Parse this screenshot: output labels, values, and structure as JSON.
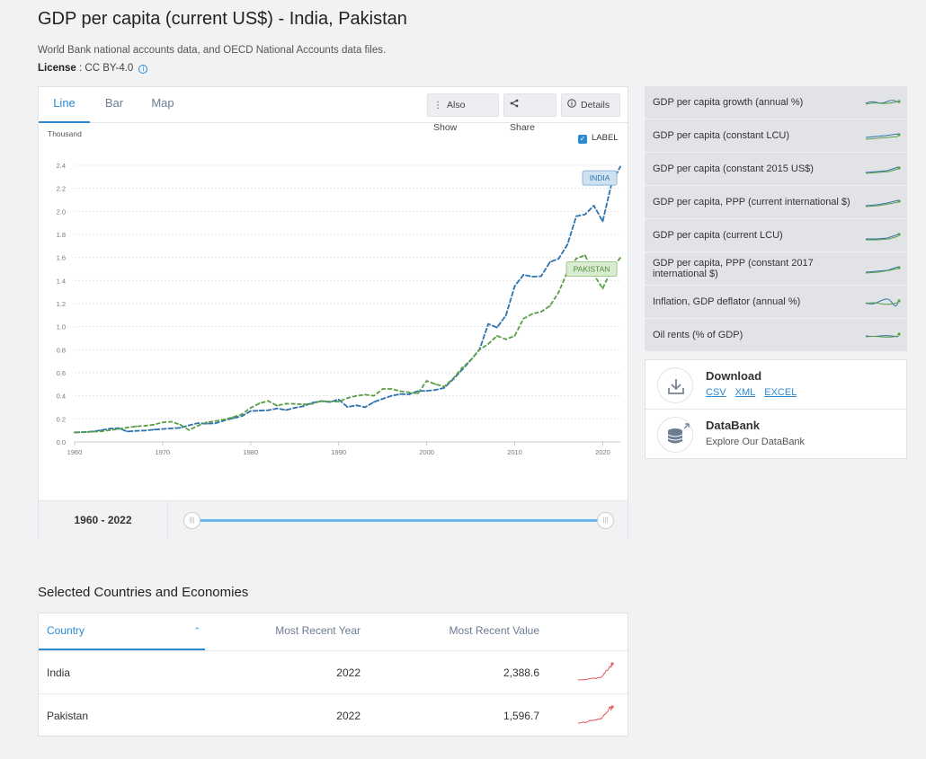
{
  "page": {
    "title": "GDP per capita (current US$) - India, Pakistan",
    "source": "World Bank national accounts data, and OECD National Accounts data files.",
    "license_label": "License",
    "license_value": " : CC BY-4.0"
  },
  "tabs": [
    {
      "label": "Line",
      "active": true
    },
    {
      "label": "Bar",
      "active": false
    },
    {
      "label": "Map",
      "active": false
    }
  ],
  "toolbar": {
    "also_show": "Also Show",
    "share": "Share",
    "details": "Details"
  },
  "label_toggle": {
    "label": "LABEL",
    "checked": true
  },
  "chart_data": {
    "type": "line",
    "ylabel": "Thousand",
    "xlim": [
      1960,
      2022
    ],
    "ylim": [
      0,
      2.4
    ],
    "y_ticks": [
      "0.0",
      "0.2",
      "0.4",
      "0.6",
      "0.8",
      "1.0",
      "1.2",
      "1.4",
      "1.6",
      "1.8",
      "2.0",
      "2.2",
      "2.4"
    ],
    "x_ticks": [
      "1960",
      "1970",
      "1980",
      "1990",
      "2000",
      "2010",
      "2020"
    ],
    "grid": true,
    "series": [
      {
        "name": "INDIA",
        "color": "#2e73ad",
        "x": [
          1960,
          1961,
          1962,
          1963,
          1964,
          1965,
          1966,
          1967,
          1968,
          1969,
          1970,
          1971,
          1972,
          1973,
          1974,
          1975,
          1976,
          1977,
          1978,
          1979,
          1980,
          1981,
          1982,
          1983,
          1984,
          1985,
          1986,
          1987,
          1988,
          1989,
          1990,
          1991,
          1992,
          1993,
          1994,
          1995,
          1996,
          1997,
          1998,
          1999,
          2000,
          2001,
          2002,
          2003,
          2004,
          2005,
          2006,
          2007,
          2008,
          2009,
          2010,
          2011,
          2012,
          2013,
          2014,
          2015,
          2016,
          2017,
          2018,
          2019,
          2020,
          2021,
          2022
        ],
        "values": [
          0.083,
          0.086,
          0.09,
          0.101,
          0.115,
          0.119,
          0.09,
          0.096,
          0.099,
          0.107,
          0.112,
          0.118,
          0.122,
          0.144,
          0.163,
          0.158,
          0.161,
          0.186,
          0.206,
          0.224,
          0.267,
          0.271,
          0.274,
          0.291,
          0.277,
          0.296,
          0.31,
          0.34,
          0.354,
          0.346,
          0.368,
          0.303,
          0.317,
          0.301,
          0.346,
          0.374,
          0.4,
          0.415,
          0.413,
          0.441,
          0.443,
          0.451,
          0.47,
          0.543,
          0.624,
          0.71,
          0.802,
          1.023,
          0.993,
          1.097,
          1.351,
          1.45,
          1.434,
          1.438,
          1.56,
          1.59,
          1.714,
          1.958,
          1.974,
          2.05,
          1.913,
          2.239,
          2.389
        ]
      },
      {
        "name": "PAKISTAN",
        "color": "#5a9e45",
        "x": [
          1960,
          1961,
          1962,
          1963,
          1964,
          1965,
          1966,
          1967,
          1968,
          1969,
          1970,
          1971,
          1972,
          1973,
          1974,
          1975,
          1976,
          1977,
          1978,
          1979,
          1980,
          1981,
          1982,
          1983,
          1984,
          1985,
          1986,
          1987,
          1988,
          1989,
          1990,
          1991,
          1992,
          1993,
          1994,
          1995,
          1996,
          1997,
          1998,
          1999,
          2000,
          2001,
          2002,
          2003,
          2004,
          2005,
          2006,
          2007,
          2008,
          2009,
          2010,
          2011,
          2012,
          2013,
          2014,
          2015,
          2016,
          2017,
          2018,
          2019,
          2020,
          2021,
          2022
        ],
        "values": [
          0.082,
          0.084,
          0.088,
          0.092,
          0.102,
          0.112,
          0.125,
          0.135,
          0.14,
          0.15,
          0.17,
          0.175,
          0.15,
          0.103,
          0.14,
          0.17,
          0.18,
          0.195,
          0.215,
          0.24,
          0.295,
          0.335,
          0.355,
          0.315,
          0.332,
          0.33,
          0.325,
          0.33,
          0.355,
          0.35,
          0.349,
          0.38,
          0.4,
          0.41,
          0.4,
          0.46,
          0.46,
          0.44,
          0.43,
          0.42,
          0.53,
          0.5,
          0.48,
          0.55,
          0.64,
          0.71,
          0.8,
          0.85,
          0.92,
          0.89,
          0.92,
          1.07,
          1.11,
          1.13,
          1.18,
          1.3,
          1.48,
          1.59,
          1.62,
          1.45,
          1.33,
          1.5,
          1.597
        ]
      }
    ],
    "labels": [
      "INDIA",
      "PAKISTAN"
    ]
  },
  "range": {
    "label": "1960 - 2022",
    "start": 0,
    "end": 1
  },
  "related_indicators": [
    {
      "label": "GDP per capita growth (annual %)",
      "icon": "sparkline-icon"
    },
    {
      "label": "GDP per capita (constant LCU)",
      "icon": "sparkline-icon"
    },
    {
      "label": "GDP per capita (constant 2015 US$)",
      "icon": "sparkline-icon"
    },
    {
      "label": "GDP per capita, PPP (current international $)",
      "icon": "sparkline-icon"
    },
    {
      "label": "GDP per capita (current LCU)",
      "icon": "sparkline-icon"
    },
    {
      "label": "GDP per capita, PPP (constant 2017 international $)",
      "icon": "sparkline-icon"
    },
    {
      "label": "Inflation, GDP deflator (annual %)",
      "icon": "sparkline-icon"
    },
    {
      "label": "Oil rents (% of GDP)",
      "icon": "sparkline-icon"
    }
  ],
  "download": {
    "title": "Download",
    "formats": [
      "CSV",
      "XML",
      "EXCEL"
    ]
  },
  "databank": {
    "title": "DataBank",
    "subtitle": "Explore Our DataBank"
  },
  "table": {
    "title": "Selected Countries and Economies",
    "headers": {
      "country": "Country",
      "year": "Most Recent Year",
      "value": "Most Recent Value"
    },
    "rows": [
      {
        "country": "India",
        "year": "2022",
        "value": "2,388.6"
      },
      {
        "country": "Pakistan",
        "year": "2022",
        "value": "1,596.7"
      }
    ],
    "sparkline_color": "#e05a5a"
  }
}
